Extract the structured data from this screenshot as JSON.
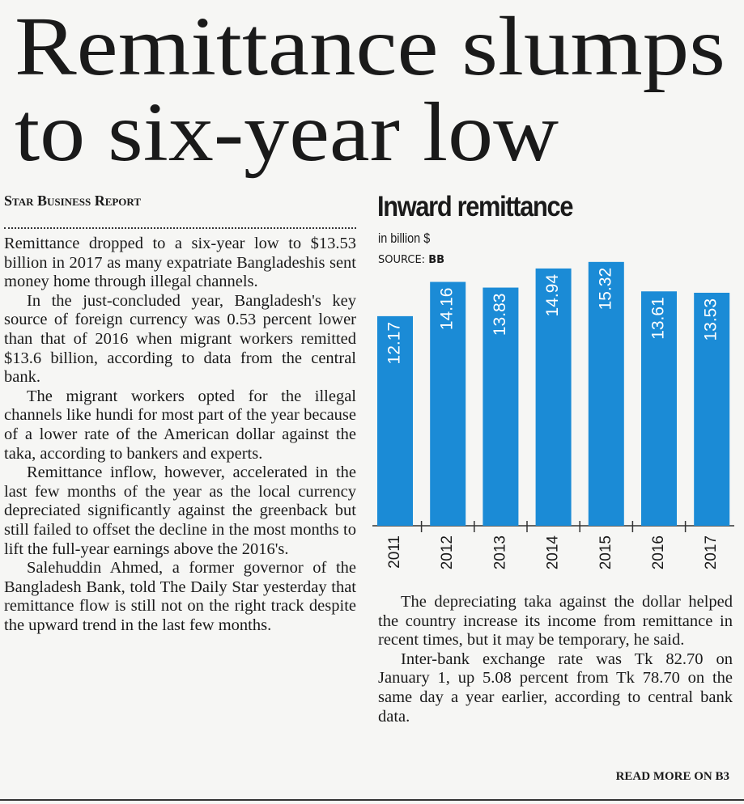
{
  "headline": [
    "Remittance slumps",
    "to six-year low"
  ],
  "byline": "Star Business Report",
  "left_paragraphs": [
    "Remittance dropped to a six-year low to $13.53 billion in 2017 as many expatriate Bangladeshis sent money home through illegal channels.",
    "In the just-concluded year, Bangladesh's key source of foreign currency was 0.53 percent lower than that of 2016 when migrant workers remitted $13.6 billion, according to data from the central bank.",
    "The migrant workers opted for the illegal channels like hundi for most part of the year because of a lower rate of the American dollar against the taka, according to bankers and experts.",
    "Remittance inflow, however, accelerated in the last few months of the year as the local currency depreciated significantly against the greenback but still failed to offset the decline in the most months to lift the full-year earnings above the 2016's.",
    "Salehuddin Ahmed, a former governor of the Bangladesh Bank, told The Daily Star yesterday that remittance flow is still not on the right track despite the upward trend in the last few months."
  ],
  "right_paragraphs": [
    "The depreciating taka against the dollar helped the country increase its income from remittance in recent times, but it may be temporary, he said.",
    "Inter-bank exchange rate was Tk 82.70 on January 1, up 5.08 percent from Tk 78.70 on the same day a year earlier, according to central bank data."
  ],
  "read_more": "READ MORE ON B3",
  "chart_data": {
    "type": "bar",
    "title": "Inward remittance",
    "subtitle": "in billion $",
    "source_label": "SOURCE:",
    "source": "BB",
    "categories": [
      "2011",
      "2012",
      "2013",
      "2014",
      "2015",
      "2016",
      "2017"
    ],
    "values": [
      12.17,
      14.16,
      13.83,
      14.94,
      15.32,
      13.61,
      13.53
    ],
    "color": "#1b8bd6",
    "ylim": [
      0,
      15.5
    ]
  }
}
